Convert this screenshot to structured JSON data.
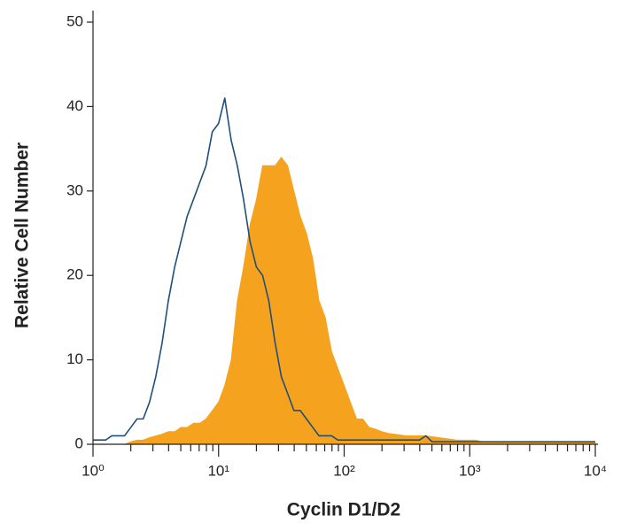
{
  "chart_data": {
    "type": "flow-histogram",
    "xlabel": "Cyclin D1/D2",
    "ylabel": "Relative Cell Number",
    "xscale": "log",
    "x": [
      1,
      1.12,
      1.26,
      1.41,
      1.58,
      1.78,
      2,
      2.24,
      2.51,
      2.82,
      3.16,
      3.55,
      3.98,
      4.47,
      5.01,
      5.62,
      6.31,
      7.08,
      7.94,
      8.91,
      10,
      11.2,
      12.6,
      14.1,
      15.8,
      17.8,
      20,
      22.4,
      25.1,
      28.2,
      31.6,
      35.5,
      39.8,
      44.7,
      50.1,
      56.2,
      63.1,
      70.8,
      79.4,
      89.1,
      100,
      112,
      126,
      141,
      158,
      178,
      200,
      224,
      251,
      282,
      316,
      355,
      398,
      447,
      501,
      562,
      631,
      708,
      794,
      891,
      1000,
      1120,
      1260,
      1410,
      1580,
      1780,
      2000,
      2240,
      2510,
      2820,
      3160,
      3550,
      3980,
      4470,
      5010,
      5620,
      6310,
      7080,
      7940,
      8910,
      10000
    ],
    "series": [
      {
        "style": "filled",
        "color": "#f5a21f",
        "values": [
          0,
          0,
          0,
          0,
          0,
          0,
          0.3,
          0.5,
          0.5,
          0.8,
          1,
          1.2,
          1.5,
          1.5,
          2,
          2,
          2.5,
          2.5,
          3,
          4,
          5,
          7,
          10,
          17,
          21,
          26,
          29,
          33,
          33,
          33,
          34,
          33,
          30,
          27,
          25,
          22,
          17,
          15,
          11,
          9,
          7,
          5,
          3,
          3,
          2,
          1.8,
          1.5,
          1.3,
          1.2,
          1.1,
          1,
          1,
          1,
          1,
          0.9,
          0.8,
          0.7,
          0.6,
          0.5,
          0.5,
          0.5,
          0.5,
          0.3,
          0.2,
          0.2,
          0.2,
          0.2,
          0.2,
          0.2,
          0.2,
          0.2,
          0.2,
          0.2,
          0.2,
          0.2,
          0.2,
          0.2,
          0.2,
          0.2,
          0.2,
          0.2
        ]
      },
      {
        "style": "outline",
        "color": "#1f4f7a",
        "values": [
          0.5,
          0.5,
          0.5,
          1,
          1,
          1,
          2,
          3,
          3,
          5,
          8,
          12,
          17,
          21,
          24,
          27,
          29,
          31,
          33,
          37,
          38,
          41,
          36,
          33,
          29,
          24,
          21,
          20,
          17,
          12,
          8,
          6,
          4,
          4,
          3,
          2,
          1,
          1,
          1,
          0.5,
          0.5,
          0.5,
          0.5,
          0.5,
          0.5,
          0.5,
          0.5,
          0.5,
          0.5,
          0.5,
          0.5,
          0.5,
          0.5,
          1,
          0.3,
          0.3,
          0.3,
          0.3,
          0.3,
          0.3,
          0.3,
          0.3,
          0.3,
          0.3,
          0.3,
          0.3,
          0.3,
          0.3,
          0.3,
          0.3,
          0.3,
          0.3,
          0.3,
          0.3,
          0.3,
          0.3,
          0.3,
          0.3,
          0.3,
          0.3,
          0.3
        ]
      }
    ],
    "xlim": [
      1,
      10000
    ],
    "ylim": [
      0,
      50
    ],
    "xticks": [
      {
        "value": 1,
        "label": "10⁰"
      },
      {
        "value": 10,
        "label": "10¹"
      },
      {
        "value": 100,
        "label": "10²"
      },
      {
        "value": 1000,
        "label": "10³"
      },
      {
        "value": 10000,
        "label": "10⁴"
      }
    ],
    "xminorticks": [
      2,
      3,
      4,
      5,
      6,
      7,
      8,
      9,
      20,
      30,
      40,
      50,
      60,
      70,
      80,
      90,
      200,
      300,
      400,
      500,
      600,
      700,
      800,
      900,
      2000,
      3000,
      4000,
      5000,
      6000,
      7000,
      8000,
      9000
    ],
    "yticks": [
      0,
      10,
      20,
      30,
      40,
      50
    ]
  }
}
